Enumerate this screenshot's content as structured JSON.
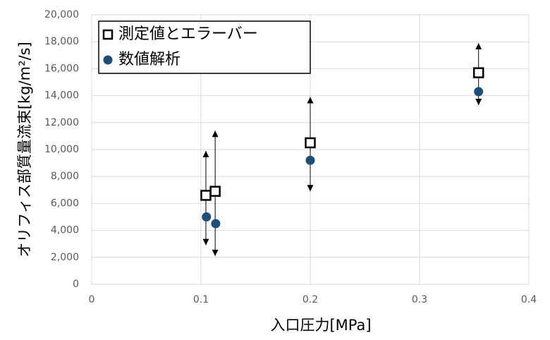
{
  "chart_data": {
    "type": "scatter",
    "x_label": "入口圧力[MPa]",
    "y_label": "オリフィス部質量流束[kg/m²/s]",
    "xlim": [
      0,
      0.4
    ],
    "xticks": [
      0,
      0.1,
      0.2,
      0.3,
      0.4
    ],
    "ylim": [
      0,
      20000
    ],
    "yticks": [
      0,
      {
        "value": 2000,
        "label": "2,000"
      },
      {
        "value": 4000,
        "label": "4,000"
      },
      {
        "value": 6000,
        "label": "6,000"
      },
      {
        "value": 8000,
        "label": "8,000"
      },
      {
        "value": 10000,
        "label": "10,000"
      },
      {
        "value": 12000,
        "label": "12,000"
      },
      {
        "value": 14000,
        "label": "14,000"
      },
      {
        "value": 16000,
        "label": "16,000"
      },
      {
        "value": 18000,
        "label": "18,000"
      },
      {
        "value": 20000,
        "label": "20,000"
      }
    ],
    "grid": true,
    "legend": "upper left",
    "series": [
      {
        "name": "測定値とエラーバー",
        "marker": "square",
        "color": "#000000",
        "x": [
          0.1045,
          0.113,
          0.2,
          0.354
        ],
        "values": [
          6600,
          6900,
          10500,
          15700
        ],
        "err_minus": [
          3700,
          4800,
          3600,
          2400
        ],
        "err_plus": [
          3300,
          4500,
          3400,
          2200
        ]
      },
      {
        "name": "数値解析",
        "marker": "circle",
        "color": "#1f4e79",
        "x": [
          0.105,
          0.1135,
          0.2,
          0.354
        ],
        "values": [
          5000,
          4500,
          9200,
          14300
        ]
      }
    ]
  }
}
